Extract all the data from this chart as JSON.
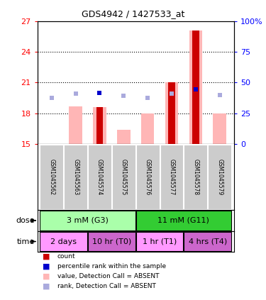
{
  "title": "GDS4942 / 1427533_at",
  "samples": [
    "GSM1045562",
    "GSM1045563",
    "GSM1045574",
    "GSM1045575",
    "GSM1045576",
    "GSM1045577",
    "GSM1045578",
    "GSM1045579"
  ],
  "red_bars_top": [
    15.05,
    15.05,
    18.6,
    15.05,
    15.05,
    21.0,
    26.1,
    15.05
  ],
  "pink_bars_top": [
    15.05,
    18.7,
    18.6,
    16.4,
    18.0,
    21.0,
    26.1,
    18.0
  ],
  "blue_y_left": [
    19.5,
    19.9,
    20.0,
    19.7,
    19.5,
    19.9,
    20.3,
    19.8
  ],
  "blue_present": [
    false,
    false,
    true,
    false,
    false,
    false,
    true,
    false
  ],
  "ylim_left": [
    15,
    27
  ],
  "ylim_right": [
    0,
    100
  ],
  "yticks_left": [
    15,
    18,
    21,
    24,
    27
  ],
  "yticks_right": [
    0,
    25,
    50,
    75,
    100
  ],
  "ytick_labels_right": [
    "0",
    "25",
    "50",
    "75",
    "100%"
  ],
  "hgrid_lines": [
    18,
    21,
    24
  ],
  "dose_groups": [
    {
      "label": "3 mM (G3)",
      "start": 0,
      "end": 3,
      "color": "#aaffaa"
    },
    {
      "label": "11 mM (G11)",
      "start": 4,
      "end": 7,
      "color": "#33cc33"
    }
  ],
  "time_groups": [
    {
      "label": "2 days",
      "start": 0,
      "end": 1,
      "color": "#ff99ff"
    },
    {
      "label": "10 hr (T0)",
      "start": 2,
      "end": 3,
      "color": "#cc66cc"
    },
    {
      "label": "1 hr (T1)",
      "start": 4,
      "end": 5,
      "color": "#ff99ff"
    },
    {
      "label": "4 hrs (T4)",
      "start": 6,
      "end": 7,
      "color": "#cc66cc"
    }
  ],
  "legend_items": [
    {
      "color": "#cc0000",
      "label": "count"
    },
    {
      "color": "#0000cc",
      "label": "percentile rank within the sample"
    },
    {
      "color": "#ffb6b6",
      "label": "value, Detection Call = ABSENT"
    },
    {
      "color": "#aaaadd",
      "label": "rank, Detection Call = ABSENT"
    }
  ],
  "red_color": "#cc0000",
  "pink_color": "#ffb6b6",
  "blue_present_color": "#0000cc",
  "blue_absent_color": "#aaaadd",
  "sample_box_color": "#cccccc",
  "background_color": "#ffffff"
}
